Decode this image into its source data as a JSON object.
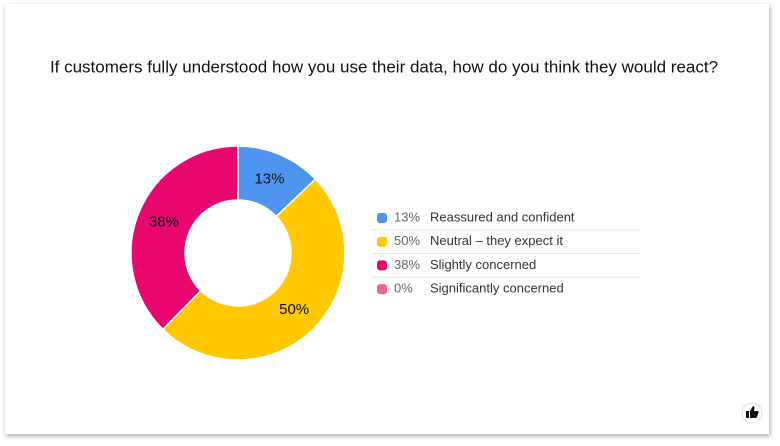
{
  "chart_data": {
    "type": "donut",
    "title": "If customers fully understood how you use their data, how do you think they would react?",
    "categories": [
      "Reassured and confident",
      "Neutral – they expect it",
      "Slightly concerned",
      "Significantly concerned"
    ],
    "values": [
      13,
      50,
      38,
      0
    ],
    "value_labels": [
      "13%",
      "50%",
      "38%",
      "0%"
    ],
    "colors": [
      "#4f94ef",
      "#ffc800",
      "#e8066f",
      "#f06292"
    ],
    "legend": "right"
  }
}
